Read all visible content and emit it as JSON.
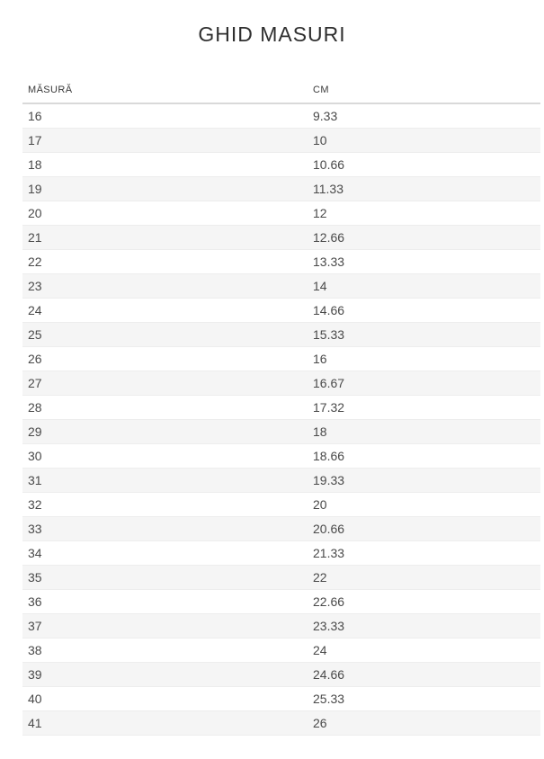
{
  "page": {
    "title": "GHID MASURI"
  },
  "table": {
    "columns": [
      {
        "key": "size",
        "label": "MĂSURĂ"
      },
      {
        "key": "cm",
        "label": "CM"
      }
    ],
    "rows": [
      {
        "size": "16",
        "cm": "9.33"
      },
      {
        "size": "17",
        "cm": "10"
      },
      {
        "size": "18",
        "cm": "10.66"
      },
      {
        "size": "19",
        "cm": "11.33"
      },
      {
        "size": "20",
        "cm": "12"
      },
      {
        "size": "21",
        "cm": "12.66"
      },
      {
        "size": "22",
        "cm": "13.33"
      },
      {
        "size": "23",
        "cm": "14"
      },
      {
        "size": "24",
        "cm": "14.66"
      },
      {
        "size": "25",
        "cm": "15.33"
      },
      {
        "size": "26",
        "cm": "16"
      },
      {
        "size": "27",
        "cm": "16.67"
      },
      {
        "size": "28",
        "cm": "17.32"
      },
      {
        "size": "29",
        "cm": "18"
      },
      {
        "size": "30",
        "cm": "18.66"
      },
      {
        "size": "31",
        "cm": "19.33"
      },
      {
        "size": "32",
        "cm": "20"
      },
      {
        "size": "33",
        "cm": "20.66"
      },
      {
        "size": "34",
        "cm": "21.33"
      },
      {
        "size": "35",
        "cm": "22"
      },
      {
        "size": "36",
        "cm": "22.66"
      },
      {
        "size": "37",
        "cm": "23.33"
      },
      {
        "size": "38",
        "cm": "24"
      },
      {
        "size": "39",
        "cm": "24.66"
      },
      {
        "size": "40",
        "cm": "25.33"
      },
      {
        "size": "41",
        "cm": "26"
      }
    ]
  },
  "colors": {
    "title_color": "#2f2f2f",
    "header_color": "#3a3a3a",
    "cell_color": "#4a4a4a",
    "header_border": "#d9d9d9",
    "row_border": "#ededed",
    "alt_row_bg": "#f5f5f5"
  }
}
